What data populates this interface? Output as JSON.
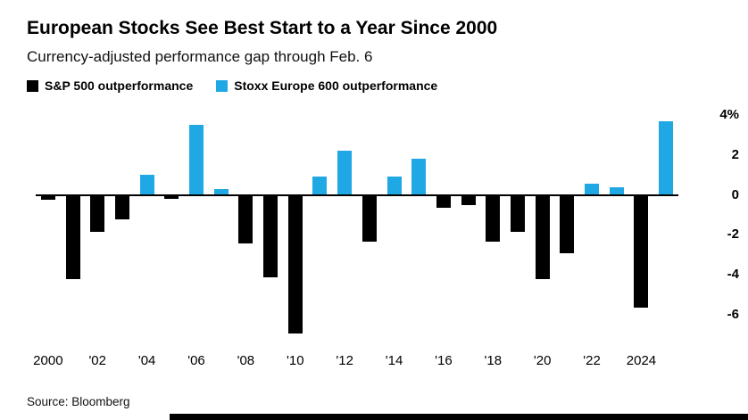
{
  "header": {
    "title": "European Stocks See Best Start to a Year Since 2000",
    "subtitle": "Currency-adjusted performance gap through Feb. 6"
  },
  "legend": {
    "items": [
      {
        "label": "S&P 500 outperformance",
        "color": "#000000"
      },
      {
        "label": "Stoxx Europe 600 outperformance",
        "color": "#1fa8e4"
      }
    ]
  },
  "footer": {
    "source": "Source: Bloomberg"
  },
  "chart_data": {
    "type": "bar",
    "title": "European Stocks See Best Start to a Year Since 2000",
    "subtitle": "Currency-adjusted performance gap through Feb. 6",
    "x": [
      2000,
      2001,
      2002,
      2003,
      2004,
      2005,
      2006,
      2007,
      2008,
      2009,
      2010,
      2011,
      2012,
      2013,
      2014,
      2015,
      2016,
      2017,
      2018,
      2019,
      2020,
      2021,
      2022,
      2023,
      2024,
      2025
    ],
    "values": [
      -0.2,
      -4.2,
      -1.8,
      -1.2,
      1.0,
      -0.15,
      3.5,
      0.3,
      -2.4,
      -4.1,
      -6.9,
      0.9,
      2.2,
      -2.3,
      0.9,
      1.8,
      -0.6,
      -0.45,
      -2.3,
      -1.8,
      -4.2,
      -2.9,
      0.55,
      0.4,
      -5.6,
      3.7
    ],
    "value_unit": "%",
    "series_rule": "positive values (blue) = Stoxx Europe 600 outperformance; negative values (black) = S&P 500 outperformance",
    "ylim": [
      -7.5,
      4.5
    ],
    "yticks": [
      4,
      2,
      0,
      -2,
      -4,
      -6
    ],
    "ytick_labels": [
      "4%",
      "2",
      "0",
      "-2",
      "-4",
      "-6"
    ],
    "xtick_labels": [
      "2000",
      "'02",
      "'04",
      "'06",
      "'08",
      "'10",
      "'12",
      "'14",
      "'16",
      "'18",
      "'20",
      "'22",
      "2024"
    ],
    "colors": {
      "positive": "#1fa8e4",
      "negative": "#000000"
    },
    "grid": false,
    "legend_position": "top",
    "yaxis_position": "right"
  }
}
